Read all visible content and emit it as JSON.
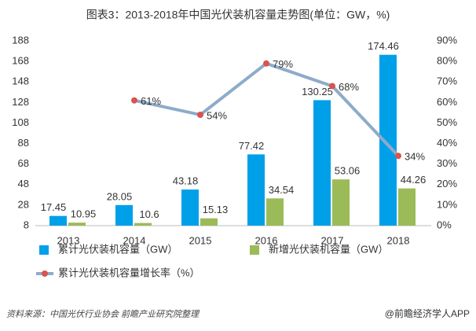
{
  "chart_data": {
    "type": "bar",
    "title": "图表3：2013-2018年中国光伏装机容量走势图(单位：GW，%)",
    "categories": [
      "2013",
      "2014",
      "2015",
      "2016",
      "2017",
      "2018"
    ],
    "series": [
      {
        "name": "累计光伏装机容量（GW）",
        "type": "bar",
        "color": "#00a0e9",
        "values": [
          17.45,
          28.05,
          43.18,
          77.42,
          130.25,
          174.46
        ]
      },
      {
        "name": "新增光伏装机容量（GW）",
        "type": "bar",
        "color": "#9bbb59",
        "values": [
          10.95,
          10.6,
          15.13,
          34.54,
          53.06,
          44.26
        ]
      },
      {
        "name": "累计光伏装机容量增长率（%）",
        "type": "line",
        "axis": "y2",
        "color": "#8eabc9",
        "marker_color": "#d9534f",
        "values": [
          null,
          61,
          54,
          79,
          68,
          34
        ],
        "value_labels": [
          null,
          "61%",
          "54%",
          "79%",
          "68%",
          "34%"
        ]
      }
    ],
    "ylim": [
      8,
      188
    ],
    "yticks": [
      8,
      28,
      48,
      68,
      88,
      108,
      128,
      148,
      168,
      188
    ],
    "y2lim": [
      0,
      90
    ],
    "y2ticks": [
      {
        "value": 0,
        "label": "0%"
      },
      {
        "value": 10,
        "label": "10%"
      },
      {
        "value": 20,
        "label": "20%"
      },
      {
        "value": 30,
        "label": "30%"
      },
      {
        "value": 40,
        "label": "40%"
      },
      {
        "value": 50,
        "label": "50%"
      },
      {
        "value": 60,
        "label": "60%"
      },
      {
        "value": 70,
        "label": "70%"
      },
      {
        "value": 80,
        "label": "80%"
      },
      {
        "value": 90,
        "label": "90%"
      }
    ],
    "source": "资料来源：中国光伏行业协会 前瞻产业研究院整理",
    "credit": "@前瞻经济学人APP"
  }
}
